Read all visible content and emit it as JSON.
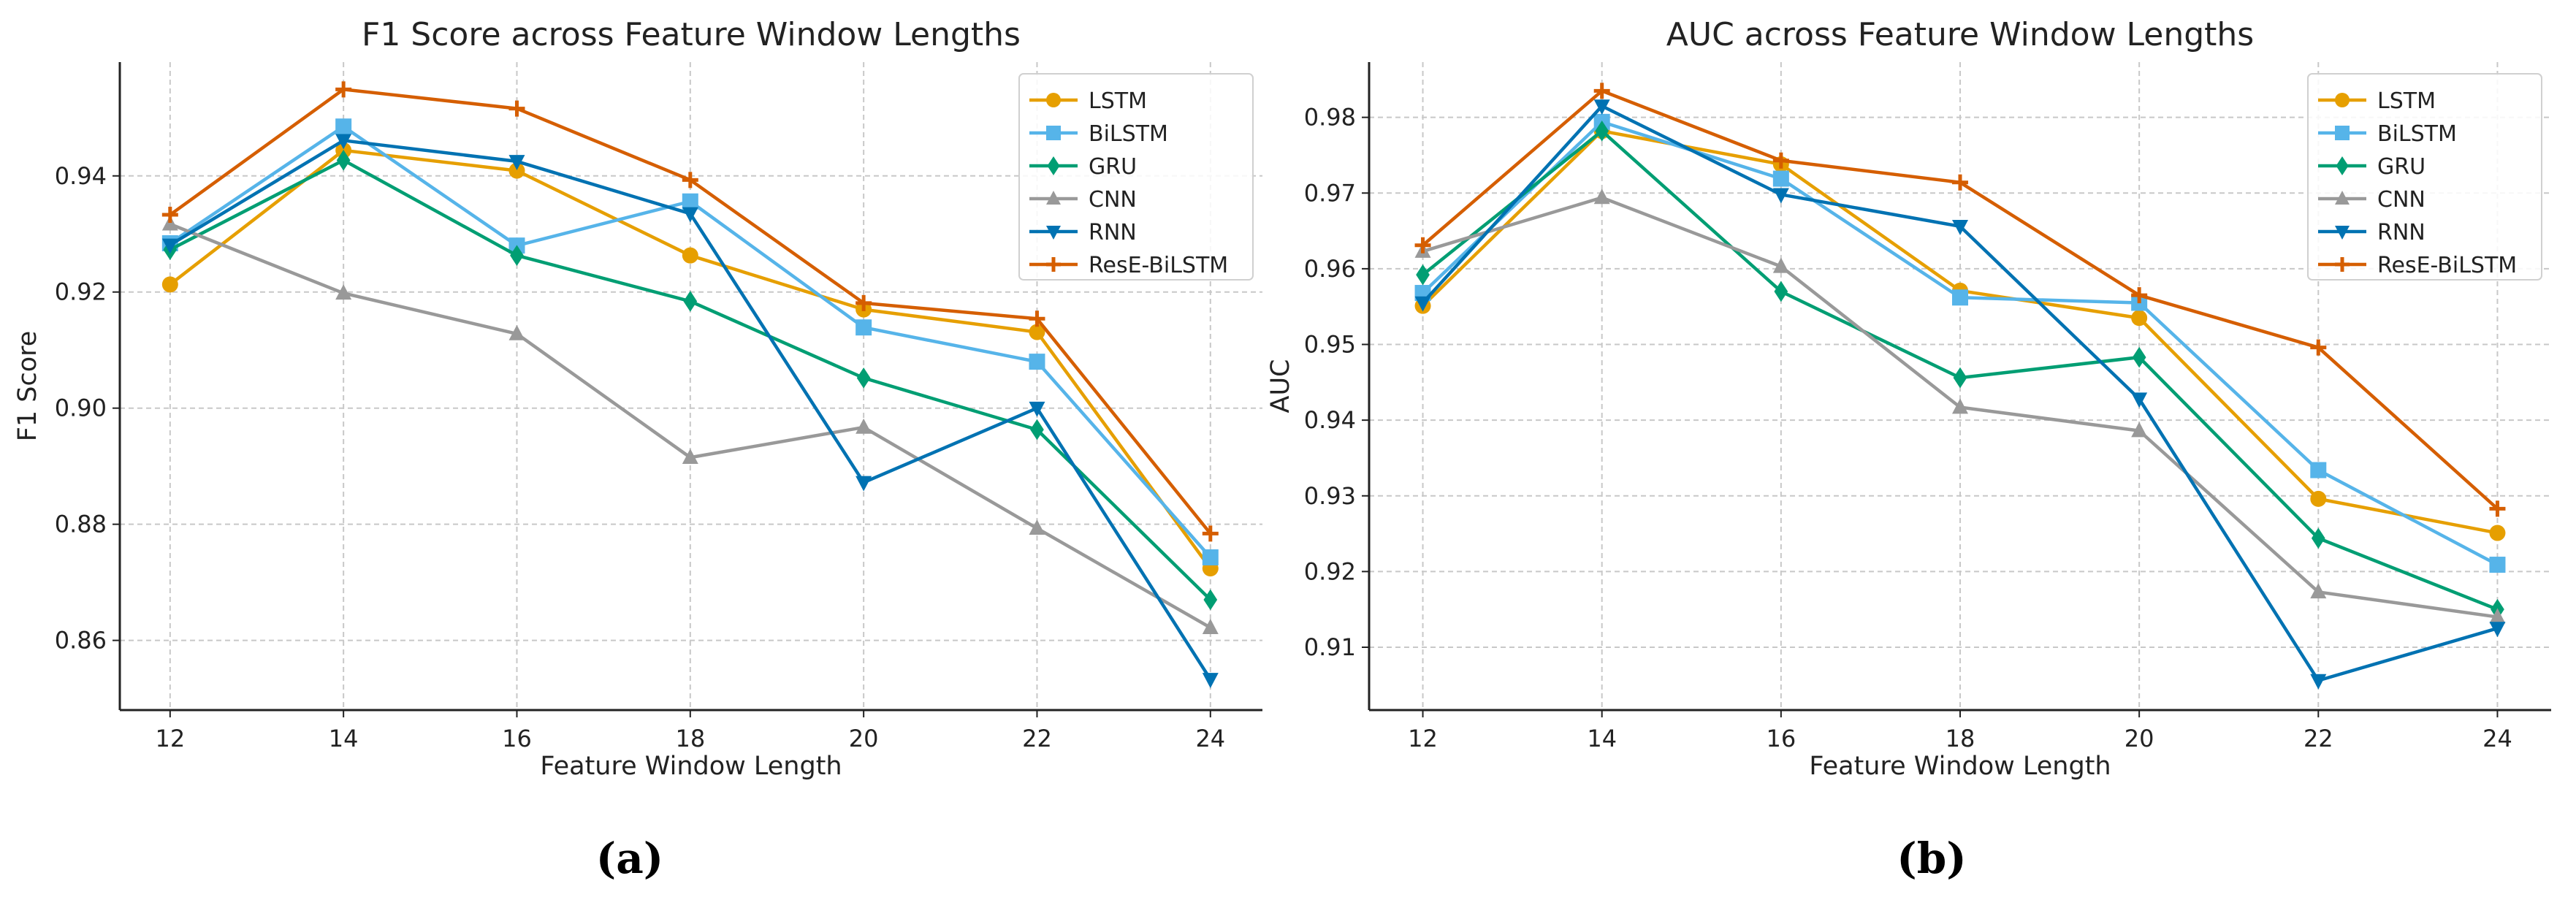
{
  "chart_data": [
    {
      "type": "line",
      "title": "F1 Score across Feature Window Lengths",
      "xlabel": "Feature Window Length",
      "ylabel": "F1 Score",
      "caption": "(a)",
      "x": [
        12,
        14,
        16,
        18,
        20,
        22,
        24
      ],
      "xticks": [
        12,
        14,
        16,
        18,
        20,
        22,
        24
      ],
      "yticks": [
        0.86,
        0.88,
        0.9,
        0.92,
        0.94
      ],
      "xlim": [
        11.42,
        24.6
      ],
      "ylim": [
        0.848,
        0.9596
      ],
      "grid": true,
      "legend_position": "top-right",
      "series": [
        {
          "name": "LSTM",
          "color": "#E69F00",
          "marker": "circle",
          "values": [
            0.9213,
            0.9444,
            0.9409,
            0.9263,
            0.917,
            0.9131,
            0.8724
          ]
        },
        {
          "name": "BiLSTM",
          "color": "#56B4E9",
          "marker": "square",
          "values": [
            0.9284,
            0.9485,
            0.928,
            0.9356,
            0.9139,
            0.908,
            0.8743
          ]
        },
        {
          "name": "GRU",
          "color": "#009E73",
          "marker": "diamond",
          "values": [
            0.9273,
            0.9427,
            0.9263,
            0.9184,
            0.9052,
            0.8963,
            0.867
          ]
        },
        {
          "name": "CNN",
          "color": "#999999",
          "marker": "triangle-up",
          "values": [
            0.9317,
            0.9198,
            0.9128,
            0.8915,
            0.8967,
            0.8793,
            0.8622
          ]
        },
        {
          "name": "RNN",
          "color": "#0072B2",
          "marker": "triangle-down",
          "values": [
            0.9281,
            0.9461,
            0.9425,
            0.9335,
            0.8872,
            0.9,
            0.8533
          ]
        },
        {
          "name": "ResE-BiLSTM",
          "color": "#D55E00",
          "marker": "plus",
          "values": [
            0.9333,
            0.9549,
            0.9516,
            0.9393,
            0.9181,
            0.9154,
            0.8784
          ]
        }
      ]
    },
    {
      "type": "line",
      "title": "AUC across Feature Window Lengths",
      "xlabel": "Feature Window Length",
      "ylabel": "AUC",
      "caption": "(b)",
      "x": [
        12,
        14,
        16,
        18,
        20,
        22,
        24
      ],
      "xticks": [
        12,
        14,
        16,
        18,
        20,
        22,
        24
      ],
      "yticks": [
        0.91,
        0.92,
        0.93,
        0.94,
        0.95,
        0.96,
        0.97,
        0.98
      ],
      "xlim": [
        11.4,
        24.6
      ],
      "ylim": [
        0.9017,
        0.9873
      ],
      "grid": true,
      "legend_position": "top-right",
      "series": [
        {
          "name": "LSTM",
          "color": "#E69F00",
          "marker": "circle",
          "values": [
            0.9551,
            0.9782,
            0.9738,
            0.9571,
            0.9535,
            0.9296,
            0.9251
          ]
        },
        {
          "name": "BiLSTM",
          "color": "#56B4E9",
          "marker": "square",
          "values": [
            0.9568,
            0.9794,
            0.9719,
            0.9562,
            0.9555,
            0.9334,
            0.9209
          ]
        },
        {
          "name": "GRU",
          "color": "#009E73",
          "marker": "diamond",
          "values": [
            0.9592,
            0.9782,
            0.957,
            0.9456,
            0.9483,
            0.9244,
            0.915
          ]
        },
        {
          "name": "CNN",
          "color": "#999999",
          "marker": "triangle-up",
          "values": [
            0.9623,
            0.9694,
            0.9603,
            0.9417,
            0.9386,
            0.9173,
            0.914
          ]
        },
        {
          "name": "RNN",
          "color": "#0072B2",
          "marker": "triangle-down",
          "values": [
            0.9555,
            0.9815,
            0.9698,
            0.9656,
            0.9428,
            0.9056,
            0.9125
          ]
        },
        {
          "name": "ResE-BiLSTM",
          "color": "#D55E00",
          "marker": "plus",
          "values": [
            0.9631,
            0.9835,
            0.9743,
            0.9714,
            0.9565,
            0.9496,
            0.9283
          ]
        }
      ]
    }
  ]
}
